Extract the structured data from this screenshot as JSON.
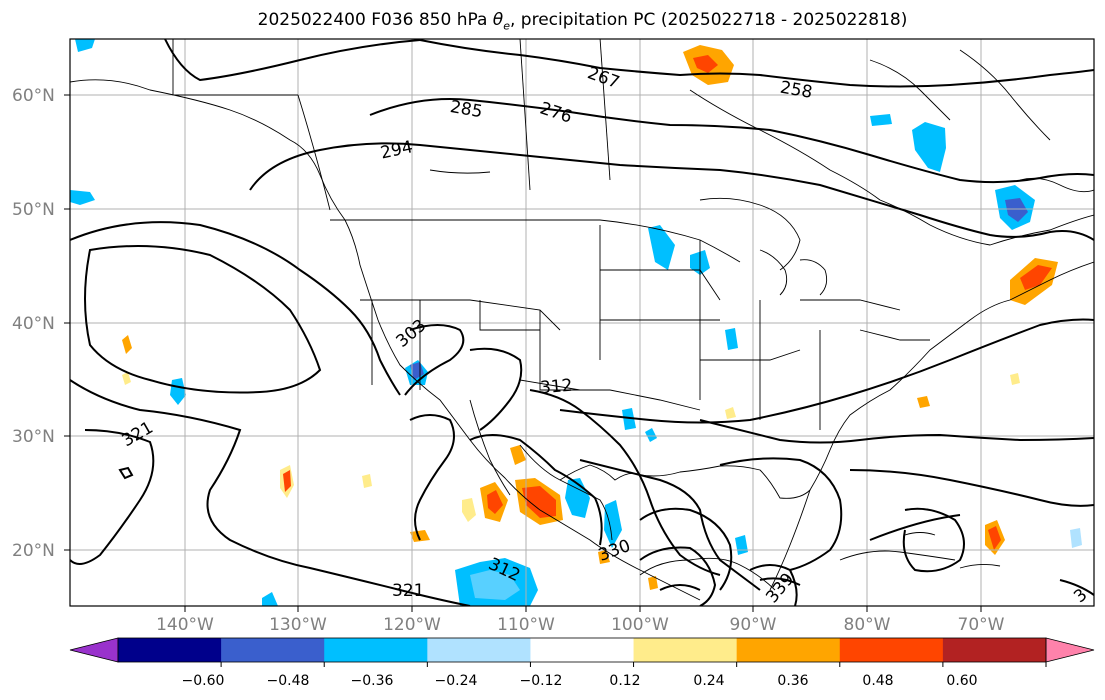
{
  "title": {
    "prefix": "2025022400 F036 850 hPa ",
    "theta_symbol": "θ",
    "theta_sub": "e",
    "suffix": ", precipitation PC (2025022718 - 2025022818)"
  },
  "lat_labels": [
    "60°N",
    "50°N",
    "40°N",
    "30°N",
    "20°N"
  ],
  "lon_labels": [
    "140°W",
    "130°W",
    "120°W",
    "110°W",
    "100°W",
    "90°W",
    "80°W",
    "70°W"
  ],
  "contour_labels": [
    "267",
    "258",
    "276",
    "285",
    "294",
    "303",
    "312",
    "321",
    "312",
    "330",
    "339",
    "321",
    "3"
  ],
  "colorbar": {
    "ticks": [
      "−0.60",
      "−0.48",
      "−0.36",
      "−0.24",
      "−0.12",
      "0.12",
      "0.24",
      "0.36",
      "0.48",
      "0.60"
    ],
    "colors": [
      "#9932CC",
      "#00008B",
      "#3A5FCD",
      "#00BFFF",
      "#B0E2FF",
      "#FFFFFF",
      "#FFEC8B",
      "#FFA500",
      "#FF4500",
      "#B22222",
      "#FF82AB"
    ]
  },
  "colors": {
    "frame": "#000000",
    "grid": "#b0b0b0",
    "contour": "#000000",
    "axis_label": "#808080"
  }
}
